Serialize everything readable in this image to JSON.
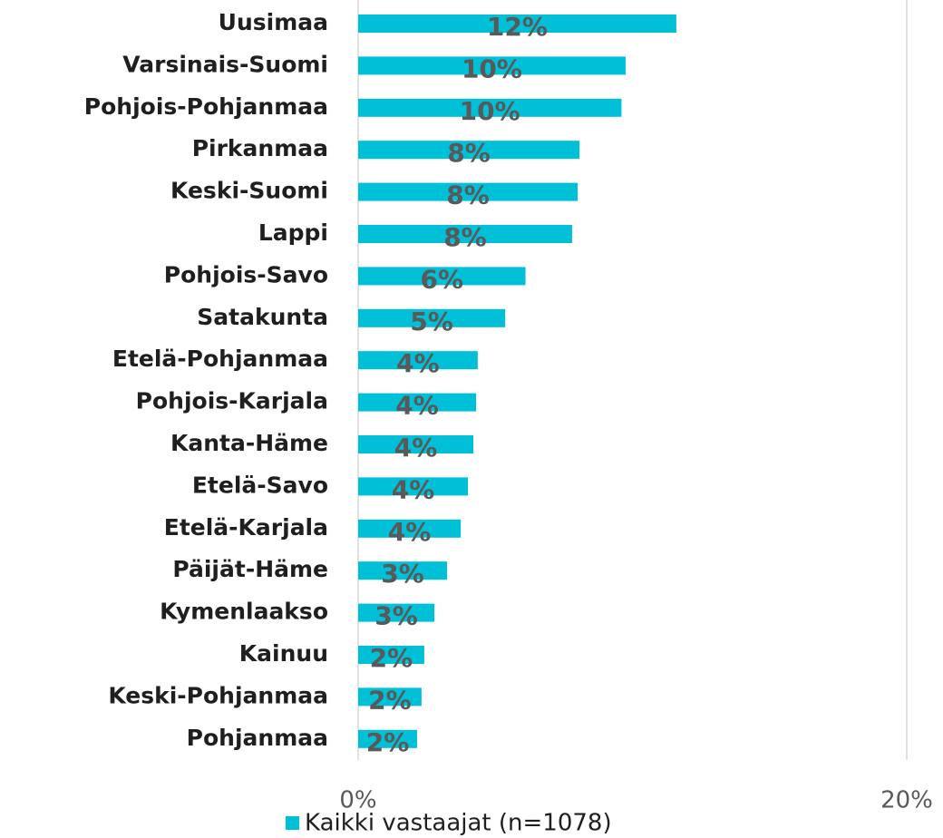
{
  "chart_data": {
    "type": "bar",
    "orientation": "horizontal",
    "categories": [
      "Uusimaa",
      "Varsinais-Suomi",
      "Pohjois-Pohjanmaa",
      "Pirkanmaa",
      "Keski-Suomi",
      "Lappi",
      "Pohjois-Savo",
      "Satakunta",
      "Etelä-Pohjanmaa",
      "Pohjois-Karjala",
      "Kanta-Häme",
      "Etelä-Savo",
      "Etelä-Karjala",
      "Päijät-Häme",
      "Kymenlaakso",
      "Kainuu",
      "Keski-Pohjanmaa",
      "Pohjanmaa"
    ],
    "series": [
      {
        "name": "Kaikki vastaajat (n=1078)",
        "color": "#00c0d8",
        "values": [
          11.6,
          9.75,
          9.6,
          8.07,
          8.0,
          7.8,
          6.1,
          5.36,
          4.36,
          4.3,
          4.2,
          4.0,
          3.74,
          3.24,
          2.78,
          2.41,
          2.31,
          2.15
        ],
        "value_labels": [
          "12%",
          "10%",
          "10%",
          "8%",
          "8%",
          "8%",
          "6%",
          "5%",
          "4%",
          "4%",
          "4%",
          "4%",
          "4%",
          "3%",
          "3%",
          "2%",
          "2%",
          "2%"
        ]
      }
    ],
    "xlim": [
      0,
      20
    ],
    "xticks": [
      {
        "value": 0,
        "label": "0%"
      },
      {
        "value": 20,
        "label": "20%"
      }
    ],
    "grid": true,
    "legend": "bottom"
  }
}
